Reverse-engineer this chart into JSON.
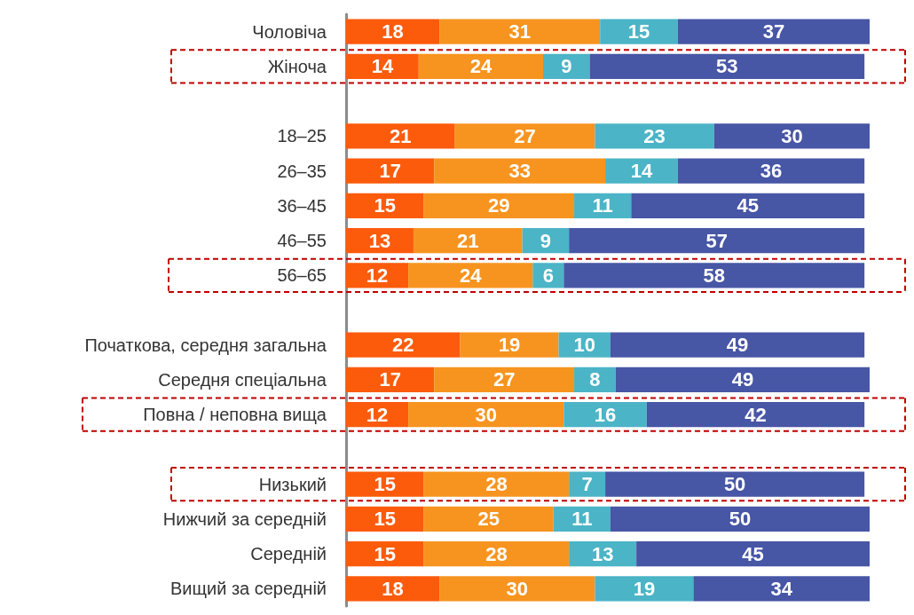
{
  "chart_data": {
    "type": "bar",
    "orientation": "horizontal",
    "stacked": true,
    "data_labels": true,
    "tick_labels": "y",
    "categories": [
      "Чоловіча",
      "Жіноча",
      null,
      "18–25",
      "26–35",
      "36–45",
      "46–55",
      "56–65",
      null,
      "Початкова, середня загальна",
      "Середня спеціальна",
      "Повна / неповна вища",
      null,
      "Низький",
      "Нижчий за середній",
      "Середній",
      "Вищий за середній"
    ],
    "xlim": [
      0,
      101
    ],
    "series": [
      {
        "color": "#fc5b0c",
        "values": [
          18,
          14,
          null,
          21,
          17,
          15,
          13,
          12,
          null,
          22,
          17,
          12,
          null,
          15,
          15,
          15,
          18
        ]
      },
      {
        "color": "#f7941f",
        "values": [
          31,
          24,
          null,
          27,
          33,
          29,
          21,
          24,
          null,
          19,
          27,
          30,
          null,
          28,
          25,
          28,
          30
        ]
      },
      {
        "color": "#4bb4c6",
        "values": [
          15,
          9,
          null,
          23,
          14,
          11,
          9,
          6,
          null,
          10,
          8,
          16,
          null,
          7,
          11,
          13,
          19
        ]
      },
      {
        "color": "#4756a5",
        "values": [
          37,
          53,
          null,
          30,
          36,
          45,
          57,
          58,
          null,
          49,
          49,
          42,
          null,
          50,
          50,
          45,
          34
        ]
      }
    ]
  }
}
